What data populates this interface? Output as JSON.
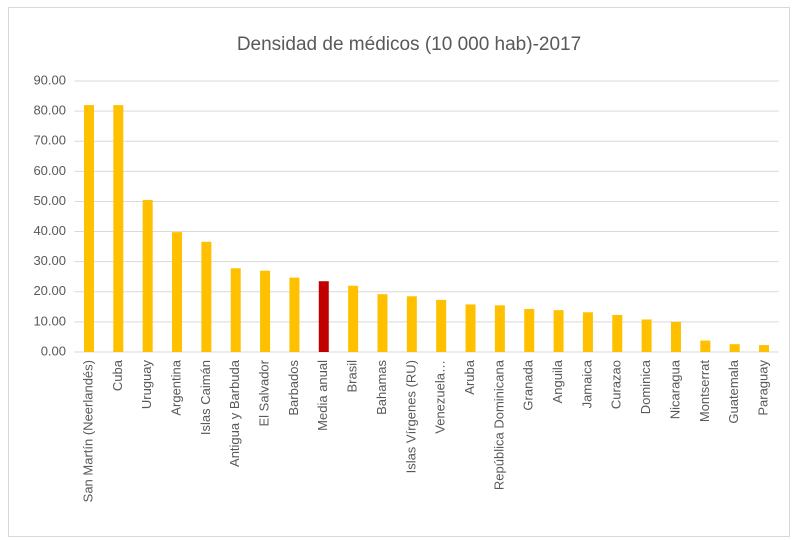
{
  "chart_data": {
    "type": "bar",
    "title": "Densidad de médicos (10 000 hab)-2017",
    "categories": [
      "San Martín (Neerlandés)",
      "Cuba",
      "Uruguay",
      "Argentina",
      "Islas Caimán",
      "Antigua y Barbuda",
      "El Salvador",
      "Barbados",
      "Media anual",
      "Brasil",
      "Bahamas",
      "Islas Vírgenes (RU)",
      "Venezuela…",
      "Aruba",
      "República Dominicana",
      "Granada",
      "Anguila",
      "Jamaica",
      "Curazao",
      "Dominica",
      "Nicaragua",
      "Montserrat",
      "Guatemala",
      "Paraguay"
    ],
    "values": [
      82,
      82,
      50.5,
      39.8,
      36.6,
      27.8,
      27,
      24.7,
      23.5,
      22,
      19.2,
      18.5,
      17.3,
      15.8,
      15.5,
      14.3,
      13.9,
      13.2,
      12.3,
      10.8,
      10,
      3.8,
      2.6,
      2.3
    ],
    "colors": [
      "#ffc000",
      "#ffc000",
      "#ffc000",
      "#ffc000",
      "#ffc000",
      "#ffc000",
      "#ffc000",
      "#ffc000",
      "#c00000",
      "#ffc000",
      "#ffc000",
      "#ffc000",
      "#ffc000",
      "#ffc000",
      "#ffc000",
      "#ffc000",
      "#ffc000",
      "#ffc000",
      "#ffc000",
      "#ffc000",
      "#ffc000",
      "#ffc000",
      "#ffc000",
      "#ffc000"
    ],
    "ylim": [
      0,
      90
    ],
    "yticks": [
      {
        "value": 0,
        "label": "0.00"
      },
      {
        "value": 10,
        "label": "10.00"
      },
      {
        "value": 20,
        "label": "20.00"
      },
      {
        "value": 30,
        "label": "30.00"
      },
      {
        "value": 40,
        "label": "40.00"
      },
      {
        "value": 50,
        "label": "50.00"
      },
      {
        "value": 60,
        "label": "60.00"
      },
      {
        "value": 70,
        "label": "70.00"
      },
      {
        "value": 80,
        "label": "80.00"
      },
      {
        "value": 90,
        "label": "90.00"
      }
    ],
    "grid": true
  }
}
